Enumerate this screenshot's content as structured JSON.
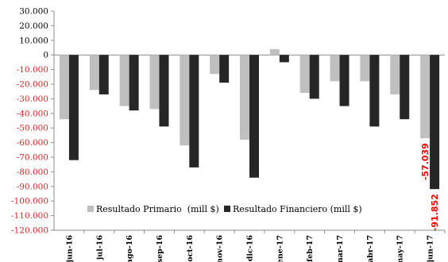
{
  "chart_data": {
    "type": "bar",
    "categories": [
      "jun-16",
      "jul-16",
      "ago-16",
      "sep-16",
      "oct-16",
      "nov-16",
      "dic-16",
      "ene-17",
      "feb-17",
      "mar-17",
      "abr-17",
      "may-17",
      "jun-17"
    ],
    "series": [
      {
        "name": "Resultado Primario  (mill $)",
        "color": "#bfbfbf",
        "values": [
          -44000,
          -24000,
          -35000,
          -37000,
          -62000,
          -13000,
          -58000,
          4000,
          -26000,
          -18000,
          -18000,
          -27000,
          -57039
        ]
      },
      {
        "name": "Resultado Financiero (mill $)",
        "color": "#262626",
        "values": [
          -72000,
          -27000,
          -38000,
          -49000,
          -77000,
          -19000,
          -84000,
          -5000,
          -30000,
          -35000,
          -49000,
          -44000,
          -91852
        ]
      }
    ],
    "ylim": [
      -120000,
      30000
    ],
    "ytick_step": 10000,
    "ytick_labels": [
      "30.000",
      "20.000",
      "10.000",
      "0",
      "-10.000",
      "-20.000",
      "-30.000",
      "-40.000",
      "-50.000",
      "-60.000",
      "-70.000",
      "-80.000",
      "-90.000",
      "-100.000",
      "-110.000",
      "-120.000"
    ],
    "positive_tick_color": "#000000",
    "negative_tick_color": "#e02020",
    "data_labels": [
      {
        "category": "jun-17",
        "series": 0,
        "text": "-57.039",
        "color": "#ff0000"
      },
      {
        "category": "jun-17",
        "series": 1,
        "text": "-91.852",
        "color": "#ff0000"
      }
    ],
    "legend_position": "inside-bottom",
    "grid": false
  }
}
